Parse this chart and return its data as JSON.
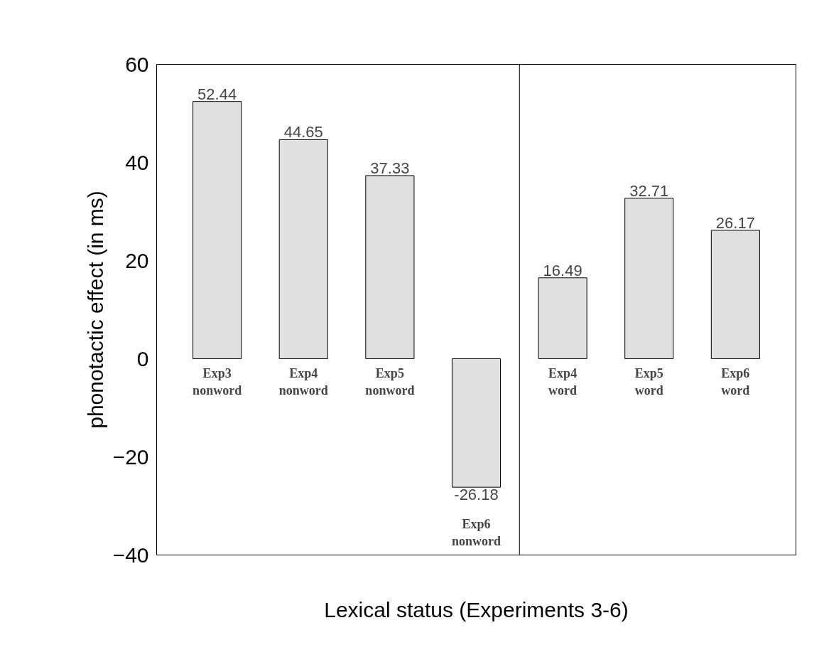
{
  "chart_data": {
    "type": "bar",
    "xlabel": "Lexical status (Experiments 3-6)",
    "ylabel": "phonotactic effect (in ms)",
    "categories": [
      "Exp3\nnonword",
      "Exp4\nnonword",
      "Exp5\nnonword",
      "Exp6\nnonword",
      "Exp4\nword",
      "Exp5\nword",
      "Exp6\nword"
    ],
    "values": [
      52.44,
      44.65,
      37.33,
      -26.18,
      16.49,
      32.71,
      26.17
    ],
    "color": "#e0e0e0",
    "ylim": [
      -40,
      60
    ],
    "yticks": [
      -40,
      -20,
      0,
      20,
      40,
      60
    ],
    "data_labels": true,
    "grid": false
  }
}
